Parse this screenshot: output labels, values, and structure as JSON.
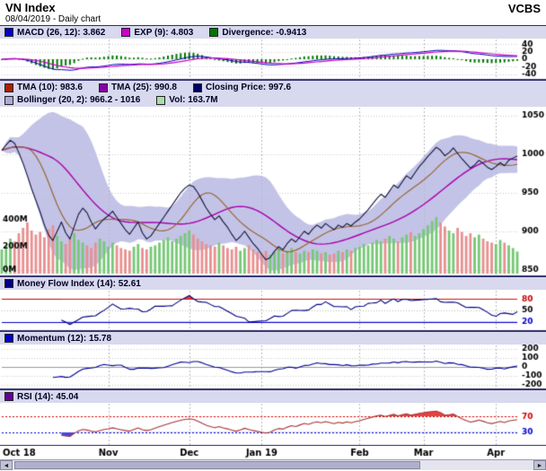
{
  "header": {
    "title": "VN Index",
    "subtitle": "08/04/2019 - Daily chart",
    "brand": "VCBS"
  },
  "colors": {
    "close_line": "#15153a",
    "tma10_line": "#996633",
    "tma25_line": "#aa00aa",
    "bollinger_fill": "rgba(135,135,210,0.5)",
    "vol_up": "#77c877",
    "vol_down": "#e89090",
    "macd_line": "#0000bb",
    "exp_line": "#cc00cc",
    "divergence_bar": "#007700",
    "mfi_line": "#000080",
    "momentum_line": "#000099",
    "rsi_line": "#aa3333",
    "overbought_fill": "#e84040",
    "oversold_fill": "#4848d8",
    "grid": "#b8b8c8",
    "panel_border": "#30306a",
    "legend_bg": "#d8d8ee"
  },
  "panels": {
    "macd": {
      "legend": [
        {
          "label": "MACD (26, 12): 3.862",
          "color": "#0000cc"
        },
        {
          "label": "EXP (9): 4.803",
          "color": "#cc00cc"
        },
        {
          "label": "Divergence: -0.9413",
          "color": "#007700"
        }
      ],
      "yticks": [
        40,
        20,
        0,
        -20,
        -40
      ],
      "ymin": -48,
      "ymax": 48
    },
    "main": {
      "legend_row1": [
        {
          "label": "TMA (10): 983.6",
          "color": "#aa2200"
        },
        {
          "label": "TMA (25): 990.8",
          "color": "#8800aa"
        },
        {
          "label": "Closing Price: 997.6",
          "color": "#000066"
        }
      ],
      "legend_row2": [
        {
          "label": "Bollinger (20, 2): 966.2 - 1016",
          "color": "#aaaadd"
        },
        {
          "label": "Vol: 163.7M",
          "color": "#aaddaa"
        }
      ],
      "right_ticks": [
        1050,
        1000,
        950,
        900,
        850
      ],
      "ymin": 845,
      "ymax": 1058,
      "vol_ticks": [
        {
          "label": "400M",
          "value": 400
        },
        {
          "label": "200M",
          "value": 200
        },
        {
          "label": "0M",
          "value": 0
        }
      ],
      "vol_scale_max": 400
    },
    "mfi": {
      "legend": [
        {
          "label": "Money Flow Index (14): 52.61",
          "color": "#000080"
        }
      ],
      "yticks": [
        80,
        50,
        20
      ],
      "tick_colors": {
        "80": "#cc0000",
        "50": "#000000",
        "20": "#0000cc"
      },
      "high": 80,
      "mid": 50,
      "low": 20,
      "ymin": 0,
      "ymax": 100
    },
    "momentum": {
      "legend": [
        {
          "label": "Momentum (12): 15.78",
          "color": "#0000cc"
        }
      ],
      "yticks": [
        200,
        100,
        0,
        -100,
        -200
      ],
      "ymin": -220,
      "ymax": 220
    },
    "rsi": {
      "legend": [
        {
          "label": "RSI (14): 45.04",
          "color": "#660099"
        }
      ],
      "yticks": [
        70,
        30
      ],
      "tick_colors": {
        "70": "#cc0000",
        "30": "#0000cc"
      },
      "high": 70,
      "low": 30,
      "ymin": 0,
      "ymax": 100
    }
  },
  "chart_data": {
    "type": "line",
    "title": "VN Index - Daily chart",
    "x_labels": [
      "Oct 18",
      "Nov",
      "Dec",
      "Jan 19",
      "Feb",
      "Mar",
      "Apr"
    ],
    "month_start_indices": [
      0,
      25,
      44,
      61,
      84,
      99,
      116
    ],
    "indicator_params": {
      "macd_fast": 12,
      "macd_slow": 26,
      "macd_signal": 9,
      "tma_short": 10,
      "tma_long": 25,
      "bollinger_period": 20,
      "bollinger_dev": 2,
      "mfi": 14,
      "momentum": 12,
      "rsi": 14
    },
    "close": [
      1005,
      1012,
      1018,
      1014,
      1002,
      988,
      972,
      955,
      940,
      925,
      908,
      895,
      888,
      900,
      912,
      898,
      890,
      906,
      922,
      930,
      924,
      912,
      903,
      910,
      916,
      920,
      926,
      918,
      910,
      902,
      896,
      904,
      912,
      898,
      890,
      894,
      902,
      910,
      918,
      926,
      934,
      942,
      950,
      956,
      960,
      958,
      950,
      940,
      930,
      922,
      915,
      920,
      912,
      905,
      896,
      888,
      893,
      900,
      892,
      884,
      878,
      870,
      863,
      866,
      874,
      880,
      876,
      884,
      890,
      886,
      893,
      900,
      896,
      903,
      908,
      904,
      910,
      906,
      902,
      908,
      905,
      910,
      907,
      912,
      916,
      922,
      928,
      935,
      942,
      948,
      944,
      952,
      960,
      956,
      964,
      972,
      968,
      976,
      984,
      990,
      997,
      1003,
      1009,
      1005,
      998,
      1002,
      1008,
      1001,
      994,
      988,
      982,
      986,
      992,
      988,
      983,
      980,
      984,
      989,
      985,
      992,
      995,
      997.6
    ],
    "volume_m": [
      180,
      210,
      260,
      240,
      300,
      340,
      380,
      320,
      290,
      310,
      270,
      330,
      360,
      280,
      240,
      220,
      260,
      300,
      250,
      230,
      210,
      190,
      230,
      260,
      240,
      200,
      230,
      210,
      190,
      180,
      170,
      200,
      220,
      190,
      180,
      200,
      210,
      230,
      250,
      270,
      240,
      260,
      280,
      300,
      320,
      290,
      260,
      240,
      220,
      210,
      200,
      230,
      210,
      190,
      180,
      200,
      170,
      190,
      210,
      180,
      160,
      150,
      170,
      140,
      160,
      180,
      150,
      170,
      190,
      160,
      150,
      170,
      160,
      180,
      170,
      150,
      160,
      140,
      150,
      170,
      160,
      180,
      170,
      190,
      200,
      220,
      210,
      230,
      250,
      240,
      260,
      280,
      260,
      240,
      270,
      290,
      310,
      280,
      300,
      330,
      360,
      390,
      420,
      380,
      350,
      320,
      300,
      340,
      310,
      280,
      300,
      270,
      290,
      260,
      240,
      230,
      220,
      250,
      230,
      210,
      190,
      164
    ]
  },
  "scrollbar": {
    "left_arrow": "◄",
    "right_arrow": "►"
  }
}
